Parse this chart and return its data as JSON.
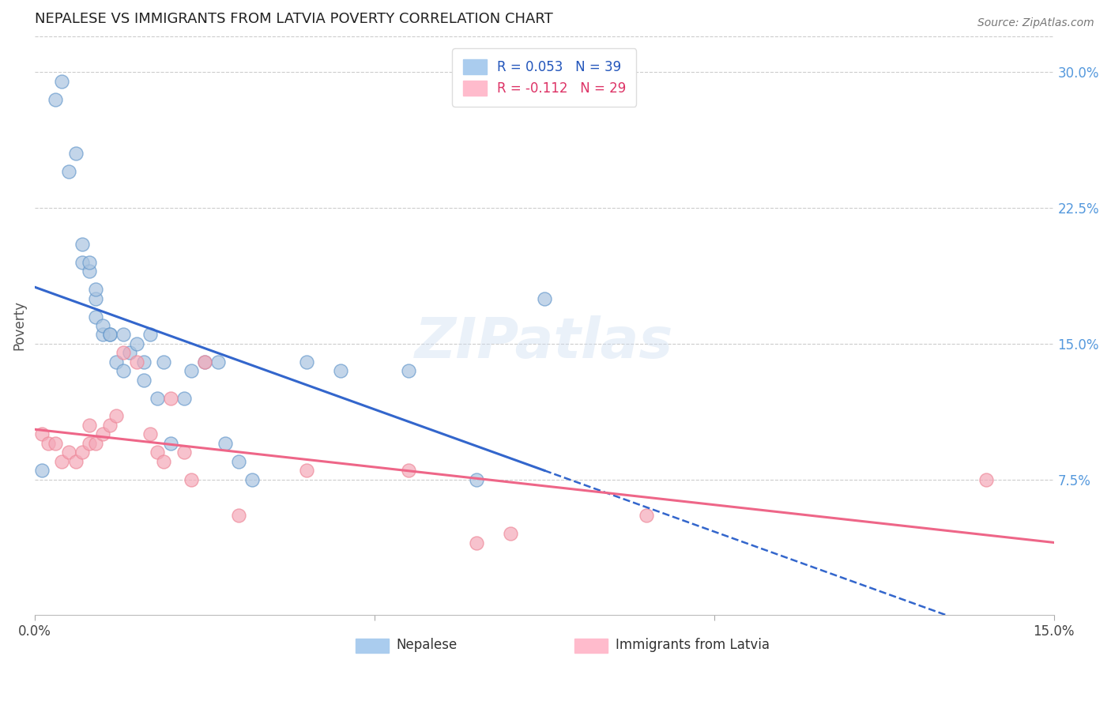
{
  "title": "NEPALESE VS IMMIGRANTS FROM LATVIA POVERTY CORRELATION CHART",
  "source": "Source: ZipAtlas.com",
  "ylabel": "Poverty",
  "right_yticks": [
    "7.5%",
    "15.0%",
    "22.5%",
    "30.0%"
  ],
  "right_ytick_vals": [
    0.075,
    0.15,
    0.225,
    0.3
  ],
  "xlim": [
    0.0,
    0.15
  ],
  "ylim": [
    0.0,
    0.32
  ],
  "watermark": "ZIPatlas",
  "blue_color": "#aac4e0",
  "pink_color": "#f4a8b8",
  "blue_line_color": "#3366cc",
  "pink_line_color": "#ee6688",
  "nepalese_x": [
    0.001,
    0.003,
    0.004,
    0.005,
    0.006,
    0.007,
    0.007,
    0.008,
    0.008,
    0.009,
    0.009,
    0.009,
    0.01,
    0.01,
    0.011,
    0.011,
    0.012,
    0.013,
    0.013,
    0.014,
    0.015,
    0.016,
    0.016,
    0.017,
    0.018,
    0.019,
    0.02,
    0.022,
    0.023,
    0.025,
    0.027,
    0.028,
    0.03,
    0.032,
    0.04,
    0.045,
    0.055,
    0.065,
    0.075
  ],
  "nepalese_y": [
    0.08,
    0.285,
    0.295,
    0.245,
    0.255,
    0.195,
    0.205,
    0.19,
    0.195,
    0.175,
    0.18,
    0.165,
    0.155,
    0.16,
    0.155,
    0.155,
    0.14,
    0.155,
    0.135,
    0.145,
    0.15,
    0.13,
    0.14,
    0.155,
    0.12,
    0.14,
    0.095,
    0.12,
    0.135,
    0.14,
    0.14,
    0.095,
    0.085,
    0.075,
    0.14,
    0.135,
    0.135,
    0.075,
    0.175
  ],
  "latvia_x": [
    0.001,
    0.002,
    0.003,
    0.004,
    0.005,
    0.006,
    0.007,
    0.008,
    0.008,
    0.009,
    0.01,
    0.011,
    0.012,
    0.013,
    0.015,
    0.017,
    0.018,
    0.019,
    0.02,
    0.022,
    0.023,
    0.025,
    0.03,
    0.04,
    0.055,
    0.065,
    0.07,
    0.09,
    0.14
  ],
  "latvia_y": [
    0.1,
    0.095,
    0.095,
    0.085,
    0.09,
    0.085,
    0.09,
    0.095,
    0.105,
    0.095,
    0.1,
    0.105,
    0.11,
    0.145,
    0.14,
    0.1,
    0.09,
    0.085,
    0.12,
    0.09,
    0.075,
    0.14,
    0.055,
    0.08,
    0.08,
    0.04,
    0.045,
    0.055,
    0.075
  ],
  "bottom_labels": [
    "Nepalese",
    "Immigrants from Latvia"
  ]
}
